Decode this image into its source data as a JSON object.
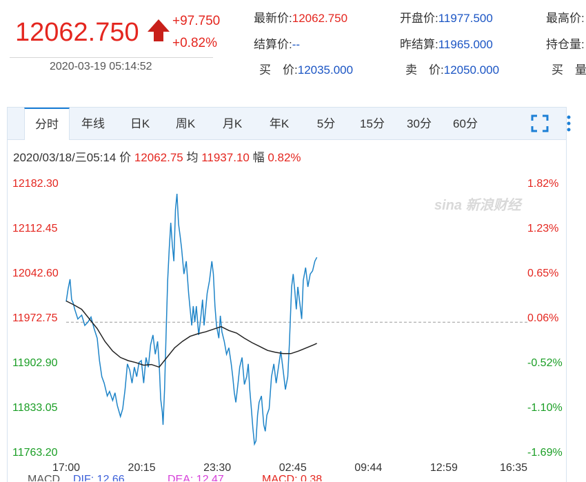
{
  "quote": {
    "last_price": "12062.750",
    "change": "+97.750",
    "change_pct": "+0.82%",
    "timestamp": "2020-03-19 05:14:52",
    "fields": [
      {
        "label": "最新价:",
        "value": "12062.750",
        "color": "red"
      },
      {
        "label": "开盘价:",
        "value": "11977.500"
      },
      {
        "label": "最高价:",
        "value": ""
      },
      {
        "label": "结算价:",
        "value": "--"
      },
      {
        "label": "昨结算:",
        "value": "11965.000"
      },
      {
        "label": "持仓量:",
        "value": ""
      },
      {
        "label": "买　价:",
        "value": "12035.000"
      },
      {
        "label": "卖　价:",
        "value": "12050.000"
      },
      {
        "label": "买　量:",
        "value": ""
      }
    ]
  },
  "tabs": [
    "分时",
    "年线",
    "日K",
    "周K",
    "月K",
    "年K",
    "5分",
    "15分",
    "30分",
    "60分"
  ],
  "active_tab": 0,
  "icons": {
    "fullscreen": "fullscreen-icon",
    "more": "more-vertical-icon",
    "up": "up-arrow-icon"
  },
  "info": {
    "datetime": "2020/03/18/三05:14",
    "price_label": "价",
    "price": "12062.75",
    "avg_label": "均",
    "avg": "11937.10",
    "amp_label": "幅",
    "amp": "0.82%"
  },
  "watermark": "sina 新浪财经",
  "colors": {
    "up": "#e4261f",
    "down": "#1a9e25",
    "price_line": "#1e84c8",
    "avg_line": "#222222",
    "accent": "#1b55c4"
  },
  "chart_data": {
    "type": "line",
    "reference_price": 11965.0,
    "y_ticks_left": [
      "12182.30",
      "12112.45",
      "12042.60",
      "11972.75",
      "11902.90",
      "11833.05",
      "11763.20"
    ],
    "y_ticks_right": [
      "1.82%",
      "1.23%",
      "0.65%",
      "0.06%",
      "-0.52%",
      "-1.10%",
      "-1.69%"
    ],
    "ylim": [
      11763.2,
      12182.3
    ],
    "x_ticks": [
      "17:00",
      "20:15",
      "23:30",
      "02:45",
      "09:44",
      "12:59",
      "16:35"
    ],
    "x_tick_positions": [
      0,
      195,
      390,
      585,
      780,
      975,
      1155
    ],
    "x_range": [
      0,
      1155
    ],
    "series": [
      {
        "kind": "price",
        "points": [
          [
            0,
            11997
          ],
          [
            5,
            12017
          ],
          [
            10,
            12032
          ],
          [
            14,
            12000
          ],
          [
            18,
            11995
          ],
          [
            22,
            11985
          ],
          [
            30,
            11970
          ],
          [
            40,
            11976
          ],
          [
            48,
            11960
          ],
          [
            56,
            11965
          ],
          [
            64,
            11973
          ],
          [
            72,
            11955
          ],
          [
            80,
            11940
          ],
          [
            86,
            11905
          ],
          [
            92,
            11880
          ],
          [
            98,
            11870
          ],
          [
            106,
            11850
          ],
          [
            112,
            11857
          ],
          [
            120,
            11843
          ],
          [
            126,
            11855
          ],
          [
            132,
            11835
          ],
          [
            140,
            11818
          ],
          [
            146,
            11830
          ],
          [
            152,
            11860
          ],
          [
            158,
            11900
          ],
          [
            164,
            11890
          ],
          [
            170,
            11870
          ],
          [
            176,
            11895
          ],
          [
            182,
            11880
          ],
          [
            188,
            11902
          ],
          [
            194,
            11905
          ],
          [
            200,
            11870
          ],
          [
            206,
            11910
          ],
          [
            212,
            11895
          ],
          [
            218,
            11930
          ],
          [
            224,
            11945
          ],
          [
            230,
            11915
          ],
          [
            236,
            11935
          ],
          [
            240,
            11900
          ],
          [
            244,
            11845
          ],
          [
            248,
            11825
          ],
          [
            250,
            11805
          ],
          [
            254,
            11860
          ],
          [
            258,
            11950
          ],
          [
            262,
            12030
          ],
          [
            266,
            12080
          ],
          [
            270,
            12120
          ],
          [
            274,
            12085
          ],
          [
            278,
            12060
          ],
          [
            282,
            12140
          ],
          [
            286,
            12165
          ],
          [
            290,
            12118
          ],
          [
            294,
            12100
          ],
          [
            298,
            12080
          ],
          [
            304,
            12040
          ],
          [
            310,
            12060
          ],
          [
            316,
            12010
          ],
          [
            320,
            11985
          ],
          [
            324,
            11960
          ],
          [
            328,
            11990
          ],
          [
            332,
            11965
          ],
          [
            336,
            11990
          ],
          [
            342,
            11945
          ],
          [
            348,
            11975
          ],
          [
            352,
            12000
          ],
          [
            356,
            11960
          ],
          [
            360,
            11985
          ],
          [
            364,
            12010
          ],
          [
            370,
            12030
          ],
          [
            376,
            12060
          ],
          [
            380,
            12040
          ],
          [
            384,
            11990
          ],
          [
            388,
            11960
          ],
          [
            394,
            11940
          ],
          [
            398,
            11975
          ],
          [
            402,
            11950
          ],
          [
            408,
            11935
          ],
          [
            414,
            11915
          ],
          [
            420,
            11925
          ],
          [
            426,
            11900
          ],
          [
            430,
            11880
          ],
          [
            434,
            11855
          ],
          [
            438,
            11840
          ],
          [
            444,
            11872
          ],
          [
            448,
            11895
          ],
          [
            454,
            11910
          ],
          [
            460,
            11868
          ],
          [
            466,
            11880
          ],
          [
            470,
            11900
          ],
          [
            474,
            11860
          ],
          [
            478,
            11830
          ],
          [
            482,
            11800
          ],
          [
            486,
            11775
          ],
          [
            490,
            11780
          ],
          [
            494,
            11820
          ],
          [
            498,
            11840
          ],
          [
            504,
            11850
          ],
          [
            510,
            11805
          ],
          [
            514,
            11795
          ],
          [
            518,
            11820
          ],
          [
            524,
            11830
          ],
          [
            530,
            11880
          ],
          [
            536,
            11900
          ],
          [
            542,
            11870
          ],
          [
            548,
            11895
          ],
          [
            554,
            11920
          ],
          [
            560,
            11890
          ],
          [
            566,
            11860
          ],
          [
            572,
            11880
          ],
          [
            576,
            11930
          ],
          [
            580,
            11990
          ],
          [
            582,
            12020
          ],
          [
            586,
            12040
          ],
          [
            590,
            12015
          ],
          [
            594,
            11985
          ],
          [
            598,
            12020
          ],
          [
            604,
            11990
          ],
          [
            608,
            11970
          ],
          [
            612,
            12030
          ],
          [
            618,
            12050
          ],
          [
            624,
            12020
          ],
          [
            630,
            12040
          ],
          [
            636,
            12045
          ],
          [
            642,
            12060
          ],
          [
            647,
            12066
          ]
        ]
      },
      {
        "kind": "average",
        "points": [
          [
            0,
            11998
          ],
          [
            20,
            11992
          ],
          [
            40,
            11985
          ],
          [
            60,
            11970
          ],
          [
            80,
            11955
          ],
          [
            100,
            11935
          ],
          [
            120,
            11920
          ],
          [
            140,
            11910
          ],
          [
            160,
            11905
          ],
          [
            180,
            11902
          ],
          [
            200,
            11898
          ],
          [
            220,
            11899
          ],
          [
            240,
            11895
          ],
          [
            260,
            11910
          ],
          [
            280,
            11925
          ],
          [
            300,
            11935
          ],
          [
            320,
            11943
          ],
          [
            340,
            11947
          ],
          [
            360,
            11950
          ],
          [
            380,
            11954
          ],
          [
            400,
            11958
          ],
          [
            420,
            11952
          ],
          [
            440,
            11948
          ],
          [
            460,
            11940
          ],
          [
            480,
            11933
          ],
          [
            500,
            11927
          ],
          [
            520,
            11921
          ],
          [
            540,
            11918
          ],
          [
            560,
            11916
          ],
          [
            580,
            11916
          ],
          [
            600,
            11920
          ],
          [
            620,
            11925
          ],
          [
            640,
            11930
          ],
          [
            647,
            11932
          ]
        ]
      }
    ],
    "partial_indicator_row": {
      "labels": [
        "MACD",
        "DIF: 12.66",
        "DEA: 12.47",
        "MACD: 0.38"
      ]
    }
  }
}
